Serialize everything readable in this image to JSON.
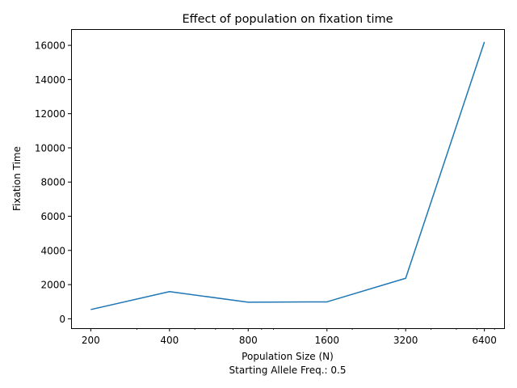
{
  "chart_data": {
    "type": "line",
    "title": "Effect of population on fixation time",
    "xlabel": "Population Size (N)",
    "xlabel_line2": "Starting Allele Freq.: 0.5",
    "ylabel": "Fixation Time",
    "x_scale": "log2",
    "x": [
      200,
      400,
      800,
      1600,
      3200,
      6400
    ],
    "x_tick_labels": [
      "200",
      "400",
      "800",
      "1600",
      "3200",
      "6400"
    ],
    "y_ticks": [
      0,
      2000,
      4000,
      6000,
      8000,
      10000,
      12000,
      14000,
      16000
    ],
    "y_tick_labels": [
      "0",
      "2000",
      "4000",
      "6000",
      "8000",
      "10000",
      "12000",
      "14000",
      "16000"
    ],
    "ylim": [
      -550,
      16950
    ],
    "grid": false,
    "series": [
      {
        "values": [
          540,
          1590,
          970,
          990,
          2370,
          16200
        ],
        "color": "#1f77b4"
      }
    ]
  }
}
